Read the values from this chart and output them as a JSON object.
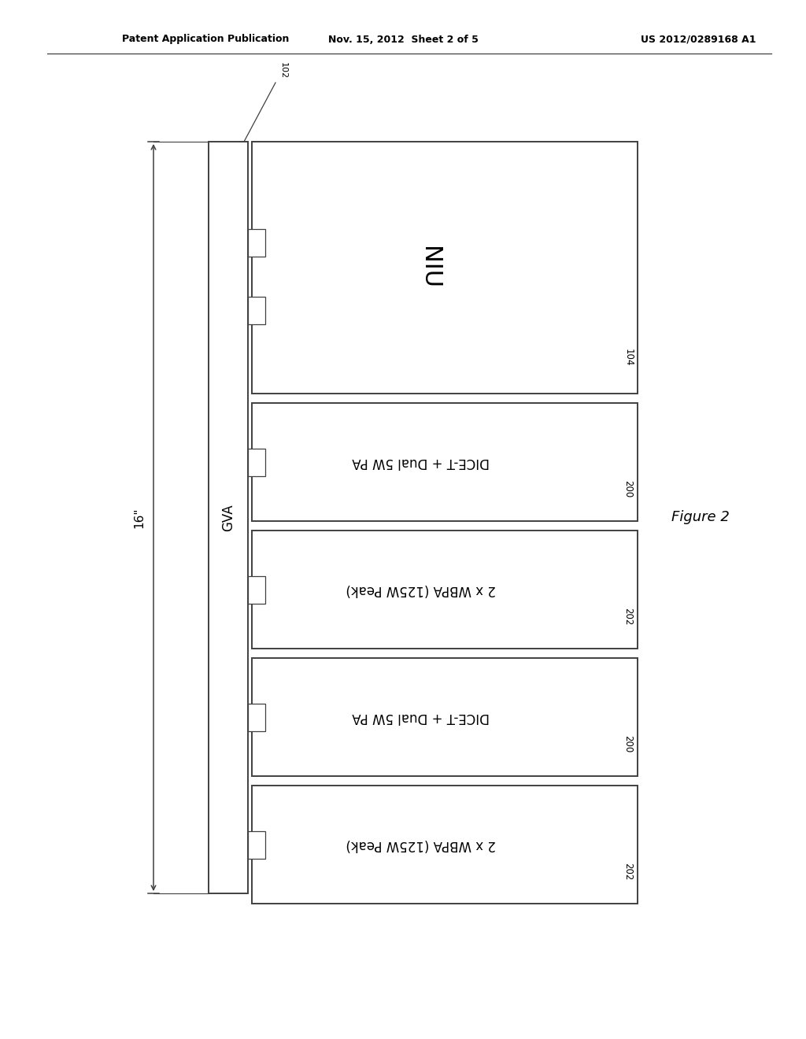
{
  "bg_color": "#ffffff",
  "header_left": "Patent Application Publication",
  "header_center": "Nov. 15, 2012  Sheet 2 of 5",
  "header_right": "US 2012/0289168 A1",
  "figure_label": "Figure 2",
  "gva_label": "GVA",
  "dimension_label": "16\"",
  "ref_102": "102",
  "ref_104": "104",
  "ref_200a": "200",
  "ref_202a": "202",
  "ref_200b": "200",
  "ref_202b": "202",
  "niu_label": "NIU",
  "module1_label": "DICE-T + Dual 5W PA",
  "module2_label": "2 x WBPA (125W Peak)",
  "module3_label": "DICE-T + Dual 5W PA",
  "module4_label": "2 x WBPA (125W Peak)",
  "line_color": "#404040",
  "text_color": "#000000"
}
